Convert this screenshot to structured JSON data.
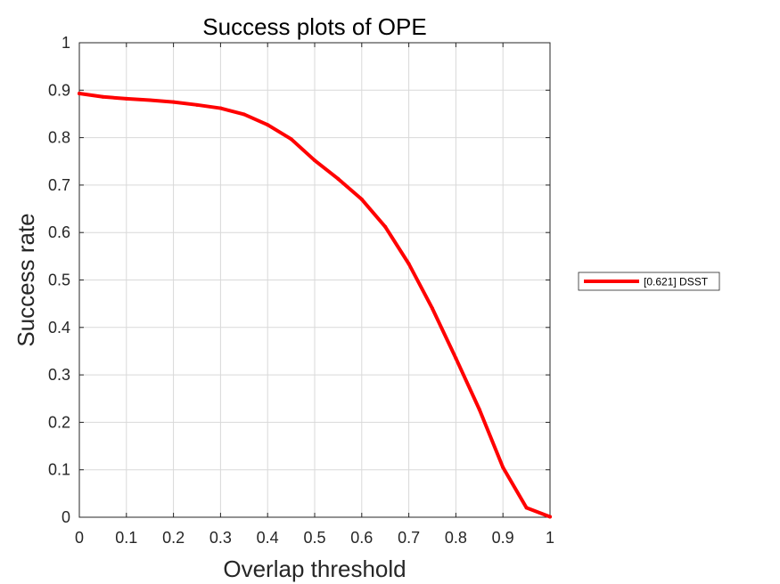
{
  "chart_data": {
    "type": "line",
    "title": "Success plots of OPE",
    "xlabel": "Overlap threshold",
    "ylabel": "Success rate",
    "xlim": [
      0,
      1
    ],
    "ylim": [
      0,
      1
    ],
    "grid": true,
    "legend_position": "outside-right",
    "x_ticks": [
      0,
      0.1,
      0.2,
      0.3,
      0.4,
      0.5,
      0.6,
      0.7,
      0.8,
      0.9,
      1
    ],
    "x_tick_labels": [
      "0",
      "0.1",
      "0.2",
      "0.3",
      "0.4",
      "0.5",
      "0.6",
      "0.7",
      "0.8",
      "0.9",
      "1"
    ],
    "y_ticks": [
      0,
      0.1,
      0.2,
      0.3,
      0.4,
      0.5,
      0.6,
      0.7,
      0.8,
      0.9,
      1
    ],
    "y_tick_labels": [
      "0",
      "0.1",
      "0.2",
      "0.3",
      "0.4",
      "0.5",
      "0.6",
      "0.7",
      "0.8",
      "0.9",
      "1"
    ],
    "x": [
      0,
      0.05,
      0.1,
      0.15,
      0.2,
      0.25,
      0.3,
      0.35,
      0.4,
      0.45,
      0.5,
      0.55,
      0.6,
      0.65,
      0.7,
      0.75,
      0.8,
      0.85,
      0.9,
      0.95,
      1
    ],
    "series": [
      {
        "name": "[0.621] DSST",
        "color": "#ff0000",
        "values": [
          0.893,
          0.886,
          0.882,
          0.879,
          0.875,
          0.869,
          0.862,
          0.849,
          0.827,
          0.797,
          0.752,
          0.713,
          0.67,
          0.612,
          0.534,
          0.44,
          0.335,
          0.227,
          0.105,
          0.02,
          0.001
        ]
      }
    ]
  },
  "colors": {
    "axis": "#262626",
    "grid": "#d9d9d9",
    "background": "#ffffff",
    "line": "#ff0000"
  }
}
